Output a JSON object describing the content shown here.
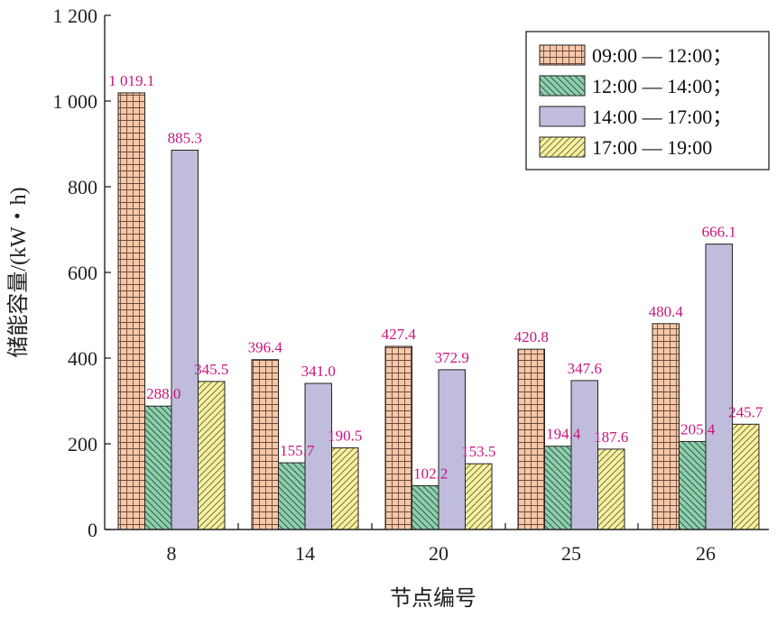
{
  "chart_data": {
    "type": "bar",
    "xlabel": "节点编号",
    "ylabel": "储能容量/(kW・h)",
    "categories": [
      "8",
      "14",
      "20",
      "25",
      "26"
    ],
    "ylim": [
      0,
      1200
    ],
    "yticks": [
      0,
      200,
      400,
      600,
      800,
      1000,
      1200
    ],
    "ytick_labels": [
      "0",
      "200",
      "400",
      "600",
      "800",
      "1 000",
      "1 200"
    ],
    "grid": false,
    "legend_position": "top-right",
    "series": [
      {
        "name": "09:00 — 12:00；",
        "values": [
          1019.1,
          396.4,
          427.4,
          420.8,
          480.4
        ],
        "labels": [
          "1 019.1",
          "396.4",
          "427.4",
          "420.8",
          "480.4"
        ],
        "color": "#f7c8a8",
        "pattern": "grid"
      },
      {
        "name": "12:00 — 14:00；",
        "values": [
          288.0,
          155.7,
          102.2,
          194.4,
          205.4
        ],
        "labels": [
          "288.0",
          "155.7",
          "102.2",
          "194.4",
          "205.4"
        ],
        "color": "#8fcfae",
        "pattern": "hatch-back"
      },
      {
        "name": "14:00 — 17:00；",
        "values": [
          885.3,
          341.0,
          372.9,
          347.6,
          666.1
        ],
        "labels": [
          "885.3",
          "341.0",
          "372.9",
          "347.6",
          "666.1"
        ],
        "color": "#c0bcdc",
        "pattern": "solid"
      },
      {
        "name": "17:00 — 19:00",
        "values": [
          345.5,
          190.5,
          153.5,
          187.6,
          245.7
        ],
        "labels": [
          "345.5",
          "190.5",
          "153.5",
          "187.6",
          "245.7"
        ],
        "color": "#f6f0a2",
        "pattern": "hatch-fwd"
      }
    ]
  },
  "colors": {
    "data_label": "#c8157f",
    "axis": "#222222"
  }
}
